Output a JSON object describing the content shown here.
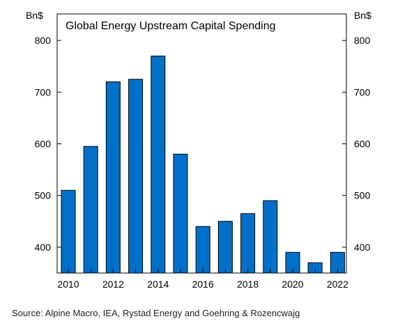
{
  "chart_data": {
    "type": "bar",
    "title": "Global Energy Upstream Capital Spending",
    "ylabel_left": "Bn$",
    "ylabel_right": "Bn$",
    "categories": [
      "2010",
      "2011",
      "2012",
      "2013",
      "2014",
      "2015",
      "2016",
      "2017",
      "2018",
      "2019",
      "2020",
      "2021",
      "2022"
    ],
    "values": [
      510,
      595,
      720,
      725,
      770,
      580,
      440,
      450,
      465,
      490,
      390,
      370,
      390
    ],
    "ylim": [
      350,
      830
    ],
    "y_ticks": [
      400,
      500,
      600,
      700,
      800
    ],
    "x_tick_labels": [
      "2010",
      "2012",
      "2014",
      "2016",
      "2018",
      "2020",
      "2022"
    ],
    "grid": false,
    "bar_color": "#0070c9",
    "bar_border_color": "#000000"
  },
  "source_text": "Source: Alpine Macro, IEA, Rystad Energy and Goehring & Rozencwajg"
}
